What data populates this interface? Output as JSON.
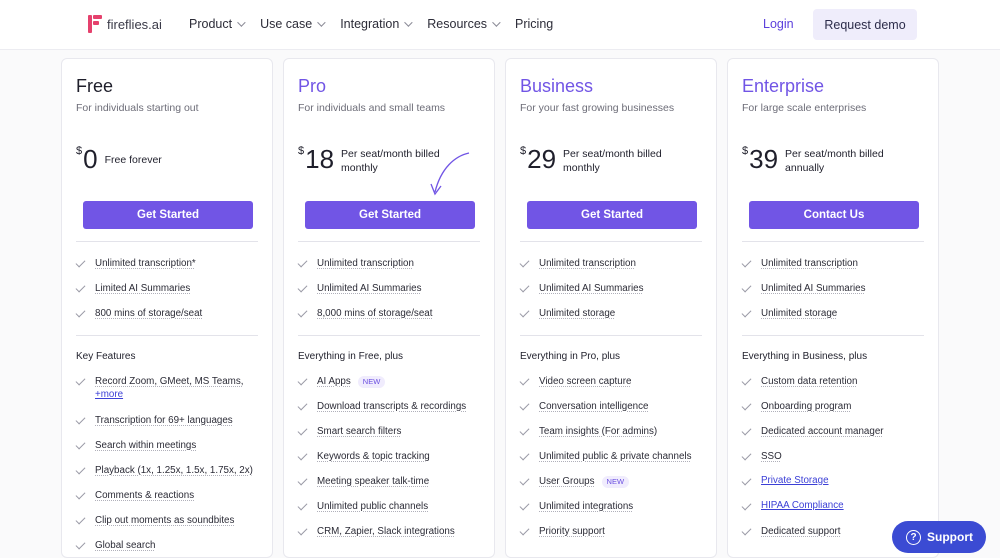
{
  "header": {
    "logo_text": "fireflies.ai",
    "nav": [
      {
        "label": "Product",
        "has_dropdown": true
      },
      {
        "label": "Use case",
        "has_dropdown": true
      },
      {
        "label": "Integration",
        "has_dropdown": true
      },
      {
        "label": "Resources",
        "has_dropdown": true
      },
      {
        "label": "Pricing",
        "has_dropdown": false
      }
    ],
    "login_label": "Login",
    "demo_label": "Request demo"
  },
  "plans": [
    {
      "name": "Free",
      "name_color": "#1f1f2b",
      "desc": "For individuals starting out",
      "currency": "$",
      "amount": "0",
      "note": "Free forever",
      "button": "Get Started",
      "basics": [
        "Unlimited transcription*",
        "Limited AI Summaries",
        "800 mins of storage/seat"
      ],
      "section": "Key Features",
      "features": [
        {
          "text": "Record Zoom, GMeet, MS Teams,",
          "link": "+more"
        },
        {
          "text": "Transcription for 69+ languages"
        },
        {
          "text": "Search within meetings"
        },
        {
          "text": "Playback (1x, 1.25x, 1.5x, 1.75x, 2x)"
        },
        {
          "text": "Comments & reactions"
        },
        {
          "text": "Clip out moments as soundbites"
        },
        {
          "text": "Global search"
        }
      ]
    },
    {
      "name": "Pro",
      "name_color": "#7155e5",
      "desc": "For individuals and small teams",
      "currency": "$",
      "amount": "18",
      "note": "Per seat/month billed monthly",
      "button": "Get Started",
      "basics": [
        "Unlimited transcription",
        "Unlimited AI Summaries",
        "8,000 mins of storage/seat"
      ],
      "section": "Everything in Free, plus",
      "features": [
        {
          "text": "AI Apps",
          "badge": "NEW"
        },
        {
          "text": "Download transcripts & recordings"
        },
        {
          "text": "Smart search filters"
        },
        {
          "text": "Keywords & topic tracking"
        },
        {
          "text": "Meeting speaker talk-time"
        },
        {
          "text": "Unlimited public channels"
        },
        {
          "text": "CRM, Zapier, Slack integrations"
        }
      ]
    },
    {
      "name": "Business",
      "name_color": "#7155e5",
      "desc": "For your fast growing businesses",
      "currency": "$",
      "amount": "29",
      "note": "Per seat/month billed monthly",
      "button": "Get Started",
      "basics": [
        "Unlimited transcription",
        "Unlimited AI Summaries",
        "Unlimited storage"
      ],
      "section": "Everything in Pro, plus",
      "features": [
        {
          "text": "Video screen capture"
        },
        {
          "text": "Conversation intelligence"
        },
        {
          "text": "Team insights (For admins)"
        },
        {
          "text": "Unlimited public & private channels"
        },
        {
          "text": "User Groups",
          "badge": "NEW"
        },
        {
          "text": "Unlimited integrations"
        },
        {
          "text": "Priority support"
        }
      ]
    },
    {
      "name": "Enterprise",
      "name_color": "#7155e5",
      "desc": "For large scale enterprises",
      "currency": "$",
      "amount": "39",
      "note": "Per seat/month billed annually",
      "button": "Contact Us",
      "basics": [
        "Unlimited transcription",
        "Unlimited AI Summaries",
        "Unlimited storage"
      ],
      "section": "Everything in Business, plus",
      "features": [
        {
          "text": "Custom data retention"
        },
        {
          "text": "Onboarding program"
        },
        {
          "text": "Dedicated account manager"
        },
        {
          "text": "SSO"
        },
        {
          "text": "Private Storage",
          "is_link": true
        },
        {
          "text": "HIPAA Compliance",
          "is_link": true
        },
        {
          "text": "Dedicated support"
        }
      ]
    }
  ],
  "support_label": "Support",
  "colors": {
    "accent": "#7155e5",
    "link": "#3b3fd6",
    "support": "#3b4bd3",
    "logo": "#e5416d"
  }
}
